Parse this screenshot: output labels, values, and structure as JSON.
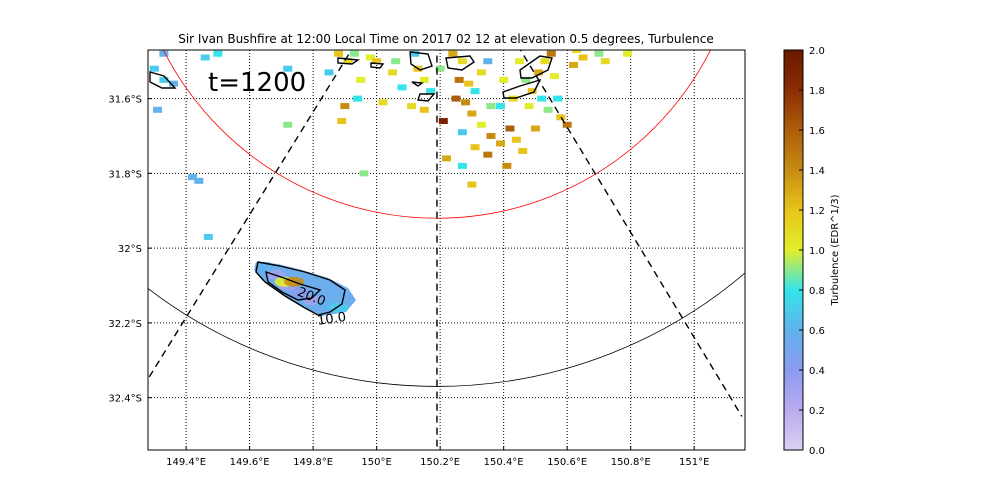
{
  "chart_data": {
    "type": "heatmap",
    "title": "Sir Ivan Bushfire at 12:00 Local Time on 2017 02 12 at elevation 0.5 degrees, Turbulence",
    "annotation": "t=1200",
    "x_ticks": [
      "149.4°E",
      "149.6°E",
      "149.8°E",
      "150°E",
      "150.2°E",
      "150.4°E",
      "150.6°E",
      "150.8°E",
      "151°E"
    ],
    "x_tick_values": [
      149.4,
      149.6,
      149.8,
      150.0,
      150.2,
      150.4,
      150.6,
      150.8,
      151.0
    ],
    "y_ticks": [
      "31.6°S",
      "31.8°S",
      "32°S",
      "32.2°S",
      "32.4°S"
    ],
    "y_tick_values": [
      -31.6,
      -31.8,
      -32.0,
      -32.2,
      -32.4
    ],
    "xlim": [
      149.28,
      151.16
    ],
    "ylim": [
      -32.54,
      -31.47
    ],
    "grid": true,
    "colorbar": {
      "label": "Turbulence (EDR^1/3)",
      "range": [
        0.0,
        2.0
      ],
      "ticks": [
        "0.0",
        "0.2",
        "0.4",
        "0.6",
        "0.8",
        "1.0",
        "1.2",
        "1.4",
        "1.6",
        "1.8",
        "2.0"
      ],
      "tick_values": [
        0.0,
        0.2,
        0.4,
        0.6,
        0.8,
        1.0,
        1.2,
        1.4,
        1.6,
        1.8,
        2.0
      ],
      "stops": [
        {
          "v": 0.0,
          "color": "#ddd0f4"
        },
        {
          "v": 0.2,
          "color": "#b9aaee"
        },
        {
          "v": 0.4,
          "color": "#8b9cf0"
        },
        {
          "v": 0.6,
          "color": "#61b2ec"
        },
        {
          "v": 0.8,
          "color": "#33e4ea"
        },
        {
          "v": 1.0,
          "color": "#e2ee2c"
        },
        {
          "v": 1.2,
          "color": "#e8c41a"
        },
        {
          "v": 1.4,
          "color": "#c68c12"
        },
        {
          "v": 1.6,
          "color": "#ad5e0a"
        },
        {
          "v": 1.8,
          "color": "#8a2e04"
        },
        {
          "v": 2.0,
          "color": "#6a1800"
        }
      ]
    },
    "contour_labels": [
      {
        "text": "20.0",
        "lon": 149.79,
        "lat": -32.14
      },
      {
        "text": "10.0",
        "lon": 149.86,
        "lat": -32.2
      }
    ],
    "range_rings": [
      {
        "color": "#ff0000",
        "center_lon": 150.19,
        "center_lat": -31.1,
        "radius_deg_lat": 0.82
      },
      {
        "color": "#000000",
        "center_lon": 150.19,
        "center_lat": -31.1,
        "radius_deg_lat": 1.27
      }
    ],
    "radar_beams": [
      {
        "from_lon": 150.19,
        "from_lat": -31.1,
        "to_lon": 149.28,
        "to_lat": -32.35
      },
      {
        "from_lon": 150.19,
        "from_lat": -31.1,
        "to_lon": 150.19,
        "to_lat": -32.54
      },
      {
        "from_lon": 150.19,
        "from_lat": -31.1,
        "to_lon": 151.15,
        "to_lat": -32.45
      }
    ],
    "cells": [
      {
        "lon": 149.33,
        "lat": -31.55,
        "v": 0.7
      },
      {
        "lon": 149.36,
        "lat": -31.56,
        "v": 0.6
      },
      {
        "lon": 149.3,
        "lat": -31.52,
        "v": 0.7
      },
      {
        "lon": 149.33,
        "lat": -31.48,
        "v": 0.6
      },
      {
        "lon": 149.31,
        "lat": -31.63,
        "v": 0.6
      },
      {
        "lon": 149.46,
        "lat": -31.49,
        "v": 0.7
      },
      {
        "lon": 149.42,
        "lat": -31.81,
        "v": 0.6
      },
      {
        "lon": 149.44,
        "lat": -31.82,
        "v": 0.6
      },
      {
        "lon": 149.47,
        "lat": -31.97,
        "v": 0.7
      },
      {
        "lon": 149.5,
        "lat": -31.48,
        "v": 0.8
      },
      {
        "lon": 149.72,
        "lat": -31.52,
        "v": 0.7
      },
      {
        "lon": 149.72,
        "lat": -31.67,
        "v": 0.9
      },
      {
        "lon": 149.96,
        "lat": -31.8,
        "v": 0.9
      },
      {
        "lon": 149.85,
        "lat": -31.53,
        "v": 0.7
      },
      {
        "lon": 149.88,
        "lat": -31.48,
        "v": 1.2
      },
      {
        "lon": 149.91,
        "lat": -31.5,
        "v": 1.1
      },
      {
        "lon": 149.93,
        "lat": -31.48,
        "v": 0.9
      },
      {
        "lon": 149.98,
        "lat": -31.49,
        "v": 1.0
      },
      {
        "lon": 150.0,
        "lat": -31.5,
        "v": 1.2
      },
      {
        "lon": 149.95,
        "lat": -31.55,
        "v": 1.0
      },
      {
        "lon": 149.94,
        "lat": -31.6,
        "v": 0.8
      },
      {
        "lon": 149.9,
        "lat": -31.62,
        "v": 1.4
      },
      {
        "lon": 149.89,
        "lat": -31.66,
        "v": 1.2
      },
      {
        "lon": 150.02,
        "lat": -31.61,
        "v": 1.1
      },
      {
        "lon": 150.06,
        "lat": -31.5,
        "v": 0.9
      },
      {
        "lon": 150.08,
        "lat": -31.57,
        "v": 0.8
      },
      {
        "lon": 150.12,
        "lat": -31.48,
        "v": 0.7
      },
      {
        "lon": 150.13,
        "lat": -31.52,
        "v": 1.2
      },
      {
        "lon": 150.15,
        "lat": -31.55,
        "v": 1.0
      },
      {
        "lon": 150.11,
        "lat": -31.62,
        "v": 1.1
      },
      {
        "lon": 150.15,
        "lat": -31.63,
        "v": 1.2
      },
      {
        "lon": 150.17,
        "lat": -31.58,
        "v": 0.8
      },
      {
        "lon": 150.2,
        "lat": -31.52,
        "v": 0.9
      },
      {
        "lon": 150.21,
        "lat": -31.66,
        "v": 1.9
      },
      {
        "lon": 150.24,
        "lat": -31.48,
        "v": 1.3
      },
      {
        "lon": 150.27,
        "lat": -31.5,
        "v": 1.1
      },
      {
        "lon": 150.26,
        "lat": -31.55,
        "v": 1.5
      },
      {
        "lon": 150.29,
        "lat": -31.56,
        "v": 1.2
      },
      {
        "lon": 150.25,
        "lat": -31.6,
        "v": 1.6
      },
      {
        "lon": 150.28,
        "lat": -31.61,
        "v": 1.4
      },
      {
        "lon": 150.31,
        "lat": -31.58,
        "v": 0.8
      },
      {
        "lon": 150.33,
        "lat": -31.53,
        "v": 1.1
      },
      {
        "lon": 150.35,
        "lat": -31.5,
        "v": 0.6
      },
      {
        "lon": 150.3,
        "lat": -31.64,
        "v": 1.3
      },
      {
        "lon": 150.33,
        "lat": -31.67,
        "v": 1.0
      },
      {
        "lon": 150.27,
        "lat": -31.69,
        "v": 0.7
      },
      {
        "lon": 150.36,
        "lat": -31.62,
        "v": 0.9
      },
      {
        "lon": 150.36,
        "lat": -31.7,
        "v": 1.4
      },
      {
        "lon": 150.31,
        "lat": -31.73,
        "v": 1.2
      },
      {
        "lon": 150.35,
        "lat": -31.75,
        "v": 1.5
      },
      {
        "lon": 150.39,
        "lat": -31.72,
        "v": 1.3
      },
      {
        "lon": 150.42,
        "lat": -31.68,
        "v": 1.6
      },
      {
        "lon": 150.44,
        "lat": -31.71,
        "v": 1.2
      },
      {
        "lon": 150.4,
        "lat": -31.55,
        "v": 1.0
      },
      {
        "lon": 150.43,
        "lat": -31.6,
        "v": 1.1
      },
      {
        "lon": 150.45,
        "lat": -31.5,
        "v": 1.0
      },
      {
        "lon": 150.47,
        "lat": -31.55,
        "v": 0.9
      },
      {
        "lon": 150.49,
        "lat": -31.58,
        "v": 1.2
      },
      {
        "lon": 150.48,
        "lat": -31.62,
        "v": 1.0
      },
      {
        "lon": 150.51,
        "lat": -31.53,
        "v": 1.3
      },
      {
        "lon": 150.53,
        "lat": -31.5,
        "v": 1.1
      },
      {
        "lon": 150.55,
        "lat": -31.48,
        "v": 1.5
      },
      {
        "lon": 150.56,
        "lat": -31.54,
        "v": 1.0
      },
      {
        "lon": 150.52,
        "lat": -31.6,
        "v": 0.8
      },
      {
        "lon": 150.54,
        "lat": -31.63,
        "v": 0.9
      },
      {
        "lon": 150.57,
        "lat": -31.6,
        "v": 0.8
      },
      {
        "lon": 150.58,
        "lat": -31.65,
        "v": 1.2
      },
      {
        "lon": 150.6,
        "lat": -31.67,
        "v": 1.5
      },
      {
        "lon": 150.62,
        "lat": -31.51,
        "v": 1.3
      },
      {
        "lon": 150.5,
        "lat": -31.68,
        "v": 1.3
      },
      {
        "lon": 150.46,
        "lat": -31.74,
        "v": 1.2
      },
      {
        "lon": 150.41,
        "lat": -31.78,
        "v": 1.4
      },
      {
        "lon": 150.39,
        "lat": -31.62,
        "v": 0.8
      },
      {
        "lon": 150.22,
        "lat": -31.76,
        "v": 1.3
      },
      {
        "lon": 150.27,
        "lat": -31.78,
        "v": 0.8
      },
      {
        "lon": 150.3,
        "lat": -31.83,
        "v": 1.2
      },
      {
        "lon": 150.05,
        "lat": -31.53,
        "v": 1.1
      },
      {
        "lon": 150.63,
        "lat": -31.47,
        "v": 1.1
      },
      {
        "lon": 150.65,
        "lat": -31.49,
        "v": 1.2
      },
      {
        "lon": 150.7,
        "lat": -31.48,
        "v": 0.9
      },
      {
        "lon": 150.72,
        "lat": -31.5,
        "v": 1.1
      },
      {
        "lon": 150.79,
        "lat": -31.48,
        "v": 1.0
      }
    ],
    "blobs": [
      {
        "lon": 149.68,
        "lat": -32.07,
        "v": 0.3
      },
      {
        "lon": 149.72,
        "lat": -32.1,
        "v": 0.3
      },
      {
        "lon": 149.76,
        "lat": -32.12,
        "v": 0.4
      },
      {
        "lon": 149.8,
        "lat": -32.14,
        "v": 0.3
      },
      {
        "lon": 149.84,
        "lat": -32.15,
        "v": 0.6
      },
      {
        "lon": 149.88,
        "lat": -32.16,
        "v": 0.7
      },
      {
        "lon": 149.65,
        "lat": -32.05,
        "v": 0.6
      },
      {
        "lon": 149.71,
        "lat": -32.09,
        "v": 1.0
      },
      {
        "lon": 149.74,
        "lat": -32.09,
        "v": 1.4
      }
    ]
  }
}
